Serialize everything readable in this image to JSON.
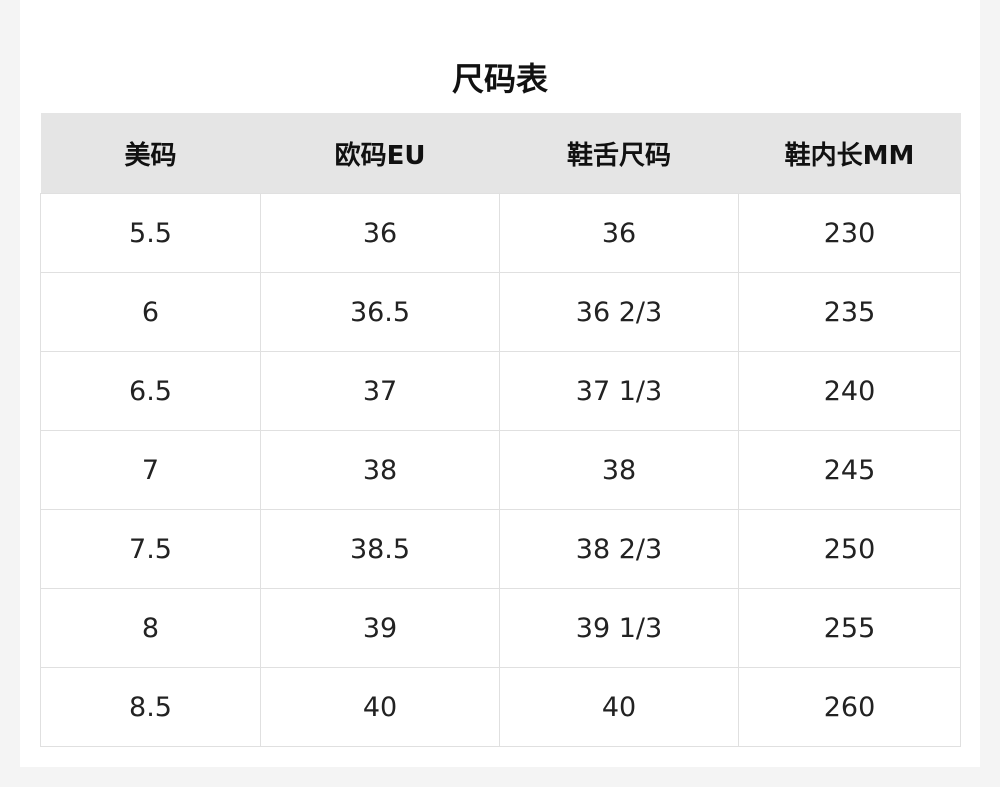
{
  "title": "尺码表",
  "table": {
    "headers": [
      "美码",
      "欧码EU",
      "鞋舌尺码",
      "鞋内长MM"
    ],
    "rows": [
      [
        "5.5",
        "36",
        "36",
        "230"
      ],
      [
        "6",
        "36.5",
        "36 2/3",
        "235"
      ],
      [
        "6.5",
        "37",
        "37 1/3",
        "240"
      ],
      [
        "7",
        "38",
        "38",
        "245"
      ],
      [
        "7.5",
        "38.5",
        "38 2/3",
        "250"
      ],
      [
        "8",
        "39",
        "39 1/3",
        "255"
      ],
      [
        "8.5",
        "40",
        "40",
        "260"
      ]
    ]
  },
  "colors": {
    "header_bg": "#e5e5e5",
    "border": "#e0e0e0",
    "page_bg": "#f4f4f4"
  }
}
